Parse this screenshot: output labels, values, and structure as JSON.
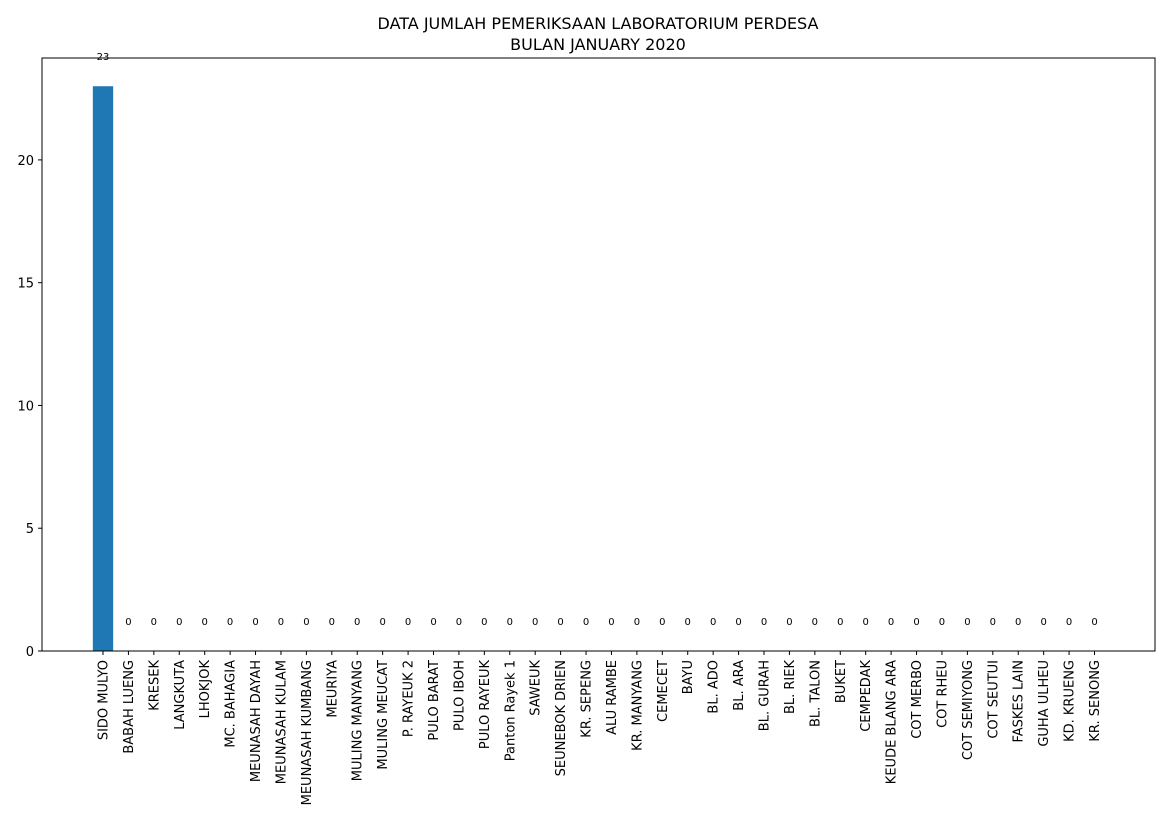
{
  "chart_data": {
    "type": "bar",
    "title": "DATA JUMLAH PEMERIKSAAN LABORATORIUM PERDESA",
    "subtitle": "BULAN JANUARY 2020",
    "xlabel": "",
    "ylabel": "",
    "ylim": [
      0,
      24.15
    ],
    "yticks": [
      0,
      5,
      10,
      15,
      20
    ],
    "grid": false,
    "bar_color": "#1f77b4",
    "categories": [
      "SIDO MULYO",
      "BABAH LUENG",
      "KRESEK",
      "LANGKUTA",
      "LHOKJOK",
      "MC. BAHAGIA",
      "MEUNASAH DAYAH",
      "MEUNASAH KULAM",
      "MEUNASAH KUMBANG",
      "MEURIYA",
      "MULING MANYANG",
      "MULING MEUCAT",
      "P. RAYEUK 2",
      "PULO BARAT",
      "PULO IBOH",
      "PULO RAYEUK",
      "Panton Rayek 1",
      "SAWEUK",
      "SEUNEBOK DRIEN",
      "KR. SEPENG",
      "ALU RAMBE",
      "KR. MANYANG",
      "CEMECET",
      "BAYU",
      "BL. ADO",
      "BL. ARA",
      "BL. GURAH",
      "BL. RIEK",
      "BL. TALON",
      "BUKET",
      "CEMPEDAK",
      "KEUDE BLANG ARA",
      "COT MERBO",
      "COT RHEU",
      "COT SEMIYONG",
      "COT SEUTUI",
      "FASKES LAIN",
      "GUHA ULHEU",
      "KD. KRUENG",
      "KR. SENONG"
    ],
    "values": [
      23,
      0,
      0,
      0,
      0,
      0,
      0,
      0,
      0,
      0,
      0,
      0,
      0,
      0,
      0,
      0,
      0,
      0,
      0,
      0,
      0,
      0,
      0,
      0,
      0,
      0,
      0,
      0,
      0,
      0,
      0,
      0,
      0,
      0,
      0,
      0,
      0,
      0,
      0,
      0
    ]
  }
}
